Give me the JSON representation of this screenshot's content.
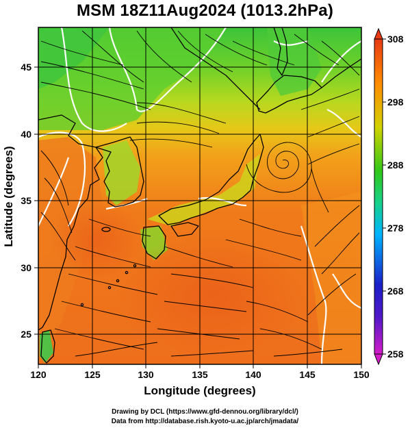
{
  "title": "MSM 18Z11Aug2024 (1013.2hPa)",
  "axes": {
    "x_label": "Longitude (degrees)",
    "y_label": "Latitude  (degrees)",
    "x_ticks": [
      "120",
      "125",
      "130",
      "135",
      "140",
      "145",
      "150"
    ],
    "y_ticks": [
      "25",
      "30",
      "35",
      "40",
      "45"
    ],
    "x_range": [
      120,
      150
    ],
    "y_range": [
      22.4,
      47.6
    ]
  },
  "colorbar": {
    "ticks": [
      "308",
      "298",
      "288",
      "278",
      "268",
      "258"
    ],
    "range": [
      258,
      308
    ],
    "colors": [
      "#d21dc8",
      "#1a20c8",
      "#00b4ff",
      "#18d28c",
      "#30c81a",
      "#d2d200",
      "#ff8c00",
      "#e83a14"
    ]
  },
  "map": {
    "grid_color": "#000000",
    "coastline_color": "#000000",
    "contour_color": "#ffffff",
    "vortex_center": [
      142.3,
      38.4
    ]
  },
  "credits": {
    "line1": "Drawing by DCL (https://www.gfd-dennou.org/library/dcl/)",
    "line2": "Data from http://database.rish.kyoto-u.ac.jp/arch/jmadata/"
  }
}
